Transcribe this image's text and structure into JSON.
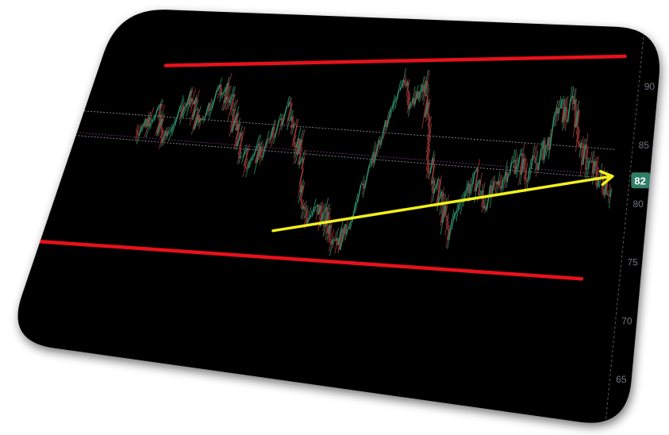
{
  "chart_data": {
    "type": "candlestick",
    "title": "",
    "xlabel": "",
    "ylabel": "",
    "ylim": [
      61,
      95
    ],
    "y_ticks": [
      {
        "value": 90,
        "label": "90"
      },
      {
        "value": 85,
        "label": "85"
      },
      {
        "value": 80,
        "label": "80"
      },
      {
        "value": 75,
        "label": "75"
      },
      {
        "value": 70,
        "label": "70"
      },
      {
        "value": 65,
        "label": "65"
      }
    ],
    "last_price": {
      "value": 82,
      "label": "82"
    },
    "price_path": [
      [
        0,
        83
      ],
      [
        3,
        85
      ],
      [
        6,
        82
      ],
      [
        9,
        87
      ],
      [
        12,
        84
      ],
      [
        15,
        88
      ],
      [
        18,
        86
      ],
      [
        21,
        83
      ],
      [
        24,
        81
      ],
      [
        27,
        82
      ],
      [
        30,
        86
      ],
      [
        33,
        84
      ],
      [
        36,
        80
      ],
      [
        39,
        76
      ],
      [
        41,
        77
      ],
      [
        43,
        76
      ],
      [
        45,
        75
      ],
      [
        47,
        74.5
      ],
      [
        48,
        77
      ],
      [
        50,
        82
      ],
      [
        52,
        87
      ],
      [
        54,
        90
      ],
      [
        55,
        88
      ],
      [
        56,
        87
      ],
      [
        58,
        89
      ],
      [
        60,
        85
      ],
      [
        62,
        82
      ],
      [
        64,
        80
      ],
      [
        66,
        78
      ],
      [
        68,
        76
      ],
      [
        70,
        80
      ],
      [
        72,
        81
      ],
      [
        74,
        79
      ],
      [
        76,
        80
      ],
      [
        78,
        82
      ],
      [
        80,
        83
      ],
      [
        82,
        82
      ],
      [
        84,
        83
      ],
      [
        86,
        85
      ],
      [
        87,
        88
      ],
      [
        89,
        87
      ],
      [
        90,
        89
      ],
      [
        91,
        87
      ],
      [
        93,
        84
      ],
      [
        95,
        83
      ],
      [
        97,
        82
      ],
      [
        99,
        81.5
      ],
      [
        100,
        81
      ]
    ],
    "reference_lines": [
      {
        "name": "upper-channel",
        "color": "#e8111b",
        "from": [
          2,
          89.5
        ],
        "to": [
          100,
          92.5
        ]
      },
      {
        "name": "lower-channel",
        "color": "#e8111b",
        "from": [
          -20,
          71
        ],
        "to": [
          96,
          73.2
        ]
      },
      {
        "name": "trendline",
        "color": "#f2f01c",
        "from": [
          33,
          74.6
        ],
        "to": [
          100,
          82.2
        ]
      }
    ],
    "horizontal_levels": [
      {
        "value": 84.5,
        "color": "#9ea6a8"
      },
      {
        "value": 82.3,
        "color": "#7a3f7c"
      },
      {
        "value": 82.0,
        "color": "#9ea6a8"
      }
    ],
    "colors": {
      "background": "#000000",
      "bull": "#2f8f6b",
      "bear": "#9e3a3a",
      "axis_text": "#6f7680",
      "badge": "#2f7f66"
    }
  }
}
